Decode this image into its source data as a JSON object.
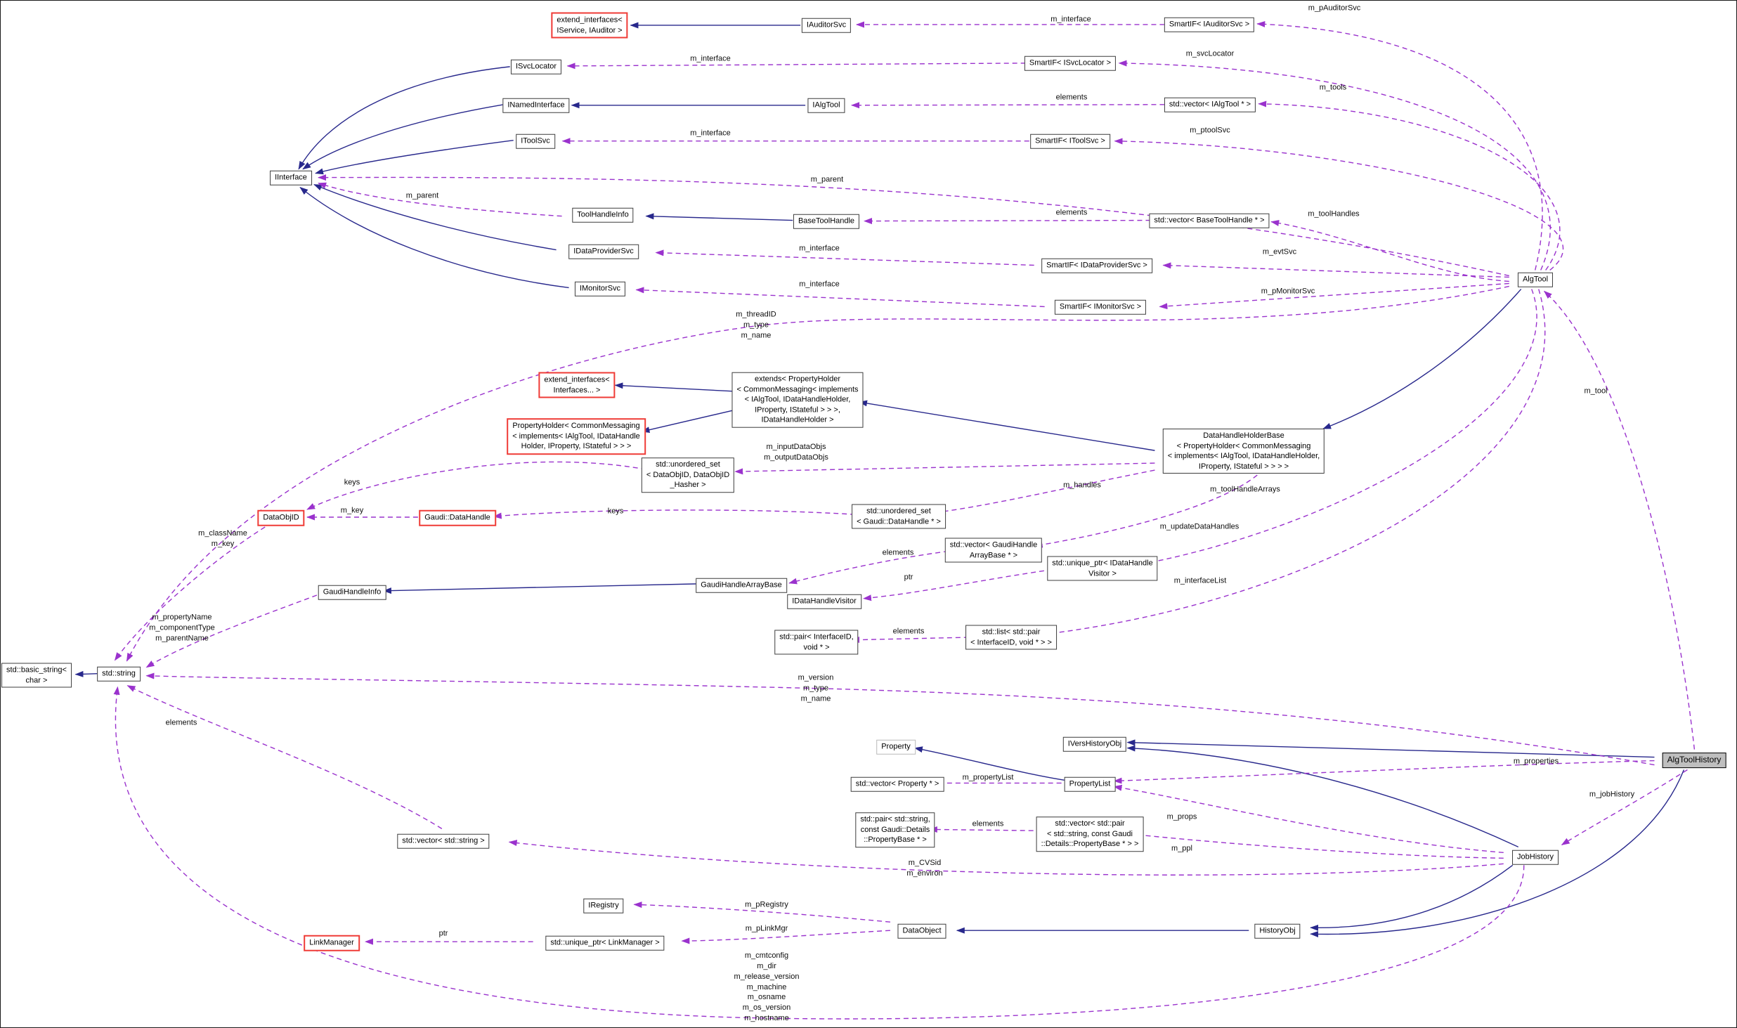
{
  "diagram": {
    "type": "doxygen-collaboration-graph",
    "colors": {
      "inherit_edge": "#28288c",
      "usage_edge": "#9a32cd",
      "node_border": "#3d3d3d",
      "truncated_node_border": "#ef3b36",
      "focus_node_fill": "#bfbfbf",
      "background": "#ffffff"
    },
    "nodes": [
      {
        "id": "ext-svc-auditor",
        "label": "extend_interfaces<\nIService, IAuditor >",
        "style": "red"
      },
      {
        "id": "iauditorsvc",
        "label": "IAuditorSvc",
        "style": "normal"
      },
      {
        "id": "smartif-iauditorsvc",
        "label": "SmartIF< IAuditorSvc >",
        "style": "normal"
      },
      {
        "id": "isvclocator",
        "label": "ISvcLocator",
        "style": "normal"
      },
      {
        "id": "smartif-isvclocator",
        "label": "SmartIF< ISvcLocator >",
        "style": "normal"
      },
      {
        "id": "inamedinterface",
        "label": "INamedInterface",
        "style": "normal"
      },
      {
        "id": "ialgtool",
        "label": "IAlgTool",
        "style": "normal"
      },
      {
        "id": "vector-ialgtool",
        "label": "std::vector< IAlgTool * >",
        "style": "normal"
      },
      {
        "id": "itoolsvc",
        "label": "IToolSvc",
        "style": "normal"
      },
      {
        "id": "smartif-itoolsvc",
        "label": "SmartIF< IToolSvc >",
        "style": "normal"
      },
      {
        "id": "iinterface",
        "label": "IInterface",
        "style": "normal"
      },
      {
        "id": "toolhandleinfo",
        "label": "ToolHandleInfo",
        "style": "normal"
      },
      {
        "id": "basetoolhandle",
        "label": "BaseToolHandle",
        "style": "normal"
      },
      {
        "id": "vector-basetoolhandle",
        "label": "std::vector< BaseToolHandle * >",
        "style": "normal"
      },
      {
        "id": "idataprovidersvc",
        "label": "IDataProviderSvc",
        "style": "normal"
      },
      {
        "id": "smartif-idataprovidersvc",
        "label": "SmartIF< IDataProviderSvc >",
        "style": "normal"
      },
      {
        "id": "imonitorsvc",
        "label": "IMonitorSvc",
        "style": "normal"
      },
      {
        "id": "smartif-imonitorsvc",
        "label": "SmartIF< IMonitorSvc >",
        "style": "normal"
      },
      {
        "id": "algtool",
        "label": "AlgTool",
        "style": "normal"
      },
      {
        "id": "ext-interfaces",
        "label": "extend_interfaces<\nInterfaces... >",
        "style": "red"
      },
      {
        "id": "extends-ph",
        "label": "extends< PropertyHolder\n< CommonMessaging< implements\n< IAlgTool, IDataHandleHolder,\nIProperty, IStateful > > >,\nIDataHandleHolder >",
        "style": "normal"
      },
      {
        "id": "propertyholder",
        "label": "PropertyHolder< CommonMessaging\n< implements< IAlgTool, IDataHandle\nHolder, IProperty, IStateful > > >",
        "style": "red"
      },
      {
        "id": "uset-dataobjid",
        "label": "std::unordered_set\n< DataObjID, DataObjID\n_Hasher >",
        "style": "normal"
      },
      {
        "id": "datahandleholderbase",
        "label": "DataHandleHolderBase\n< PropertyHolder< CommonMessaging\n< implements< IAlgTool, IDataHandleHolder,\nIProperty, IStateful > > > >",
        "style": "normal"
      },
      {
        "id": "dataobjid",
        "label": "DataObjID",
        "style": "red"
      },
      {
        "id": "gaudi-datahandle",
        "label": "Gaudi::DataHandle",
        "style": "red"
      },
      {
        "id": "uset-gaudidatahandle",
        "label": "std::unordered_set\n< Gaudi::DataHandle * >",
        "style": "normal"
      },
      {
        "id": "gaudihandleinfo",
        "label": "GaudiHandleInfo",
        "style": "normal"
      },
      {
        "id": "gaudihandlearraybase",
        "label": "GaudiHandleArrayBase",
        "style": "normal"
      },
      {
        "id": "vector-gaudihandlearraybase",
        "label": "std::vector< GaudiHandle\nArrayBase * >",
        "style": "normal"
      },
      {
        "id": "uptr-idatahandlevisitor",
        "label": "std::unique_ptr< IDataHandle\nVisitor >",
        "style": "normal"
      },
      {
        "id": "idatahandlevisitor",
        "label": "IDataHandleVisitor",
        "style": "normal"
      },
      {
        "id": "pair-interfaceid",
        "label": "std::pair< InterfaceID,\nvoid * >",
        "style": "normal"
      },
      {
        "id": "list-pair-interfaceid",
        "label": "std::list< std::pair\n< InterfaceID, void * > >",
        "style": "normal"
      },
      {
        "id": "basic-string",
        "label": "std::basic_string<\nchar >",
        "style": "normal"
      },
      {
        "id": "std-string",
        "label": "std::string",
        "style": "normal"
      },
      {
        "id": "property",
        "label": "Property",
        "style": "muted"
      },
      {
        "id": "ivershistoryobj",
        "label": "IVersHistoryObj",
        "style": "normal"
      },
      {
        "id": "vector-property",
        "label": "std::vector< Property * >",
        "style": "normal"
      },
      {
        "id": "propertylist",
        "label": "PropertyList",
        "style": "normal"
      },
      {
        "id": "pair-string-propertybase",
        "label": "std::pair< std::string,\nconst Gaudi::Details\n::PropertyBase * >",
        "style": "normal"
      },
      {
        "id": "vector-pair-string-propertybase",
        "label": "std::vector< std::pair\n< std::string, const Gaudi\n::Details::PropertyBase * > >",
        "style": "normal"
      },
      {
        "id": "algtoolhistory",
        "label": "AlgToolHistory",
        "style": "highlight"
      },
      {
        "id": "jobhistory",
        "label": "JobHistory",
        "style": "normal"
      },
      {
        "id": "vector-string",
        "label": "std::vector< std::string >",
        "style": "normal"
      },
      {
        "id": "iregistry",
        "label": "IRegistry",
        "style": "normal"
      },
      {
        "id": "dataobject",
        "label": "DataObject",
        "style": "normal"
      },
      {
        "id": "historyobj",
        "label": "HistoryObj",
        "style": "normal"
      },
      {
        "id": "linkmanager",
        "label": "LinkManager",
        "style": "red"
      },
      {
        "id": "uptr-linkmanager",
        "label": "std::unique_ptr< LinkManager >",
        "style": "normal"
      }
    ],
    "edges": [
      {
        "from": "iauditorsvc",
        "to": "ext-svc-auditor",
        "label": "",
        "style": "inherit"
      },
      {
        "from": "isvclocator",
        "to": "iinterface",
        "label": "",
        "style": "inherit"
      },
      {
        "from": "inamedinterface",
        "to": "iinterface",
        "label": "",
        "style": "inherit"
      },
      {
        "from": "itoolsvc",
        "to": "iinterface",
        "label": "",
        "style": "inherit"
      },
      {
        "from": "idataprovidersvc",
        "to": "iinterface",
        "label": "",
        "style": "inherit"
      },
      {
        "from": "imonitorsvc",
        "to": "iinterface",
        "label": "",
        "style": "inherit"
      },
      {
        "from": "ialgtool",
        "to": "inamedinterface",
        "label": "",
        "style": "inherit"
      },
      {
        "from": "basetoolhandle",
        "to": "toolhandleinfo",
        "label": "",
        "style": "inherit"
      },
      {
        "from": "algtool",
        "to": "datahandleholderbase",
        "label": "",
        "style": "inherit"
      },
      {
        "from": "datahandleholderbase",
        "to": "extends-ph",
        "label": "",
        "style": "inherit"
      },
      {
        "from": "extends-ph",
        "to": "ext-interfaces",
        "label": "",
        "style": "inherit"
      },
      {
        "from": "extends-ph",
        "to": "propertyholder",
        "label": "",
        "style": "inherit"
      },
      {
        "from": "std-string",
        "to": "basic-string",
        "label": "",
        "style": "inherit"
      },
      {
        "from": "propertylist",
        "to": "property",
        "label": "",
        "style": "inherit"
      },
      {
        "from": "algtoolhistory",
        "to": "ivershistoryobj",
        "label": "",
        "style": "inherit"
      },
      {
        "from": "jobhistory",
        "to": "ivershistoryobj",
        "label": "",
        "style": "inherit"
      },
      {
        "from": "algtoolhistory",
        "to": "historyobj",
        "label": "",
        "style": "inherit"
      },
      {
        "from": "jobhistory",
        "to": "historyobj",
        "label": "",
        "style": "inherit"
      },
      {
        "from": "historyobj",
        "to": "dataobject",
        "label": "",
        "style": "inherit"
      },
      {
        "from": "gaudihandlearraybase",
        "to": "gaudihandleinfo",
        "label": "",
        "style": "inherit"
      },
      {
        "from": "smartif-iauditorsvc",
        "to": "iauditorsvc",
        "label": "m_interface",
        "style": "usage"
      },
      {
        "from": "algtool",
        "to": "smartif-iauditorsvc",
        "label": "m_pAuditorSvc",
        "style": "usage"
      },
      {
        "from": "smartif-isvclocator",
        "to": "isvclocator",
        "label": "m_interface",
        "style": "usage"
      },
      {
        "from": "algtool",
        "to": "smartif-isvclocator",
        "label": "m_svcLocator",
        "style": "usage"
      },
      {
        "from": "vector-ialgtool",
        "to": "ialgtool",
        "label": "elements",
        "style": "usage"
      },
      {
        "from": "algtool",
        "to": "vector-ialgtool",
        "label": "m_tools",
        "style": "usage"
      },
      {
        "from": "smartif-itoolsvc",
        "to": "itoolsvc",
        "label": "m_interface",
        "style": "usage"
      },
      {
        "from": "algtool",
        "to": "smartif-itoolsvc",
        "label": "m_ptoolSvc",
        "style": "usage"
      },
      {
        "from": "algtool",
        "to": "iinterface",
        "label": "m_parent",
        "style": "usage"
      },
      {
        "from": "toolhandleinfo",
        "to": "iinterface",
        "label": "m_parent",
        "style": "usage"
      },
      {
        "from": "vector-basetoolhandle",
        "to": "basetoolhandle",
        "label": "elements",
        "style": "usage"
      },
      {
        "from": "algtool",
        "to": "vector-basetoolhandle",
        "label": "m_toolHandles",
        "style": "usage"
      },
      {
        "from": "smartif-idataprovidersvc",
        "to": "idataprovidersvc",
        "label": "m_interface",
        "style": "usage"
      },
      {
        "from": "algtool",
        "to": "smartif-idataprovidersvc",
        "label": "m_evtSvc",
        "style": "usage"
      },
      {
        "from": "smartif-imonitorsvc",
        "to": "imonitorsvc",
        "label": "m_interface",
        "style": "usage"
      },
      {
        "from": "algtool",
        "to": "smartif-imonitorsvc",
        "label": "m_pMonitorSvc",
        "style": "usage"
      },
      {
        "from": "algtool",
        "to": "std-string",
        "label": "m_threadID\nm_type\nm_name",
        "style": "usage"
      },
      {
        "from": "datahandleholderbase",
        "to": "uset-dataobjid",
        "label": "m_inputDataObjs\nm_outputDataObjs",
        "style": "usage"
      },
      {
        "from": "uset-dataobjid",
        "to": "dataobjid",
        "label": "keys",
        "style": "usage"
      },
      {
        "from": "gaudi-datahandle",
        "to": "dataobjid",
        "label": "m_key",
        "style": "usage"
      },
      {
        "from": "uset-gaudidatahandle",
        "to": "gaudi-datahandle",
        "label": "keys",
        "style": "usage"
      },
      {
        "from": "datahandleholderbase",
        "to": "uset-gaudidatahandle",
        "label": "m_handles",
        "style": "usage"
      },
      {
        "from": "vector-gaudihandlearraybase",
        "to": "gaudihandlearraybase",
        "label": "elements",
        "style": "usage"
      },
      {
        "from": "datahandleholderbase",
        "to": "vector-gaudihandlearraybase",
        "label": "m_toolHandleArrays",
        "style": "usage"
      },
      {
        "from": "algtool",
        "to": "uptr-idatahandlevisitor",
        "label": "m_updateDataHandles",
        "style": "usage"
      },
      {
        "from": "uptr-idatahandlevisitor",
        "to": "idatahandlevisitor",
        "label": "ptr",
        "style": "usage"
      },
      {
        "from": "algtool",
        "to": "list-pair-interfaceid",
        "label": "m_interfaceList",
        "style": "usage"
      },
      {
        "from": "list-pair-interfaceid",
        "to": "pair-interfaceid",
        "label": "elements",
        "style": "usage"
      },
      {
        "from": "dataobjid",
        "to": "std-string",
        "label": "m_className\nm_key",
        "style": "usage"
      },
      {
        "from": "gaudihandleinfo",
        "to": "std-string",
        "label": "m_propertyName\nm_componentType\nm_parentName",
        "style": "usage"
      },
      {
        "from": "algtoolhistory",
        "to": "std-string",
        "label": "m_version\nm_type\nm_name",
        "style": "usage"
      },
      {
        "from": "vector-string",
        "to": "std-string",
        "label": "elements",
        "style": "usage"
      },
      {
        "from": "propertylist",
        "to": "vector-property",
        "label": "m_propertyList",
        "style": "usage"
      },
      {
        "from": "algtoolhistory",
        "to": "propertylist",
        "label": "m_properties",
        "style": "usage"
      },
      {
        "from": "jobhistory",
        "to": "propertylist",
        "label": "m_props",
        "style": "usage"
      },
      {
        "from": "vector-pair-string-propertybase",
        "to": "pair-string-propertybase",
        "label": "elements",
        "style": "usage"
      },
      {
        "from": "jobhistory",
        "to": "vector-pair-string-propertybase",
        "label": "m_ppl",
        "style": "usage"
      },
      {
        "from": "algtoolhistory",
        "to": "jobhistory",
        "label": "m_jobHistory",
        "style": "usage"
      },
      {
        "from": "jobhistory",
        "to": "vector-string",
        "label": "m_CVSid\nm_environ",
        "style": "usage"
      },
      {
        "from": "dataobject",
        "to": "iregistry",
        "label": "m_pRegistry",
        "style": "usage"
      },
      {
        "from": "dataobject",
        "to": "uptr-linkmanager",
        "label": "m_pLinkMgr",
        "style": "usage"
      },
      {
        "from": "uptr-linkmanager",
        "to": "linkmanager",
        "label": "ptr",
        "style": "usage"
      },
      {
        "from": "jobhistory",
        "to": "std-string",
        "label": "m_cmtconfig\nm_dir\nm_release_version\nm_machine\nm_osname\nm_os_version\nm_hostname",
        "style": "usage"
      },
      {
        "from": "algtoolhistory",
        "to": "algtool",
        "label": "m_tool",
        "style": "usage"
      }
    ]
  }
}
